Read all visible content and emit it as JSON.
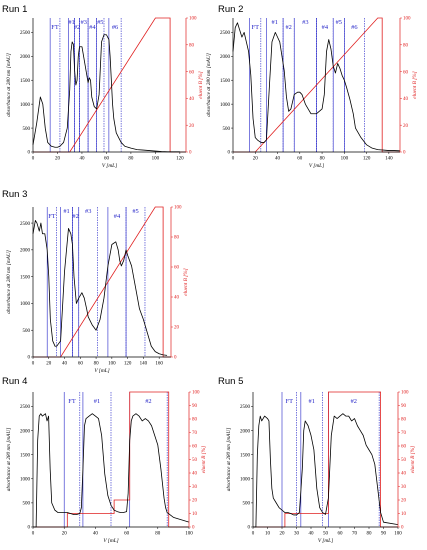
{
  "colors": {
    "absorbance": "#000000",
    "eluent": "#e02020",
    "fraction": "#2424c8",
    "right_axis": "#e02020"
  },
  "chart_data": [
    {
      "title": "Run 1",
      "type": "line",
      "xlabel": "V [mL]",
      "ylabel": "absorbance at 280 nm [mAU]",
      "y2label": "eluent B [%]",
      "xlim": [
        0,
        125
      ],
      "ylim": [
        0,
        2800
      ],
      "y2lim": [
        0,
        100
      ],
      "xticks": [
        0,
        20,
        40,
        60,
        80,
        100,
        120
      ],
      "yticks": [
        0,
        500,
        1000,
        1500,
        2000,
        2500
      ],
      "y2ticks": [
        0,
        20,
        40,
        60,
        80,
        100
      ],
      "absorbance": {
        "x": [
          0,
          3,
          6,
          8,
          10,
          12,
          15,
          18,
          20,
          22,
          25,
          28,
          30,
          31,
          32,
          33,
          34,
          35,
          36,
          37,
          38,
          40,
          42,
          44,
          45,
          46,
          47,
          48,
          50,
          52,
          54,
          56,
          58,
          60,
          62,
          63,
          64,
          65,
          66,
          68,
          70,
          72,
          75,
          80,
          85,
          90,
          95,
          100,
          105,
          110,
          115,
          120
        ],
        "y": [
          150,
          600,
          1150,
          1000,
          500,
          200,
          120,
          100,
          100,
          120,
          200,
          500,
          1300,
          2100,
          2300,
          2250,
          1700,
          1400,
          1500,
          2000,
          2200,
          2200,
          1900,
          1600,
          1450,
          1550,
          1500,
          1150,
          950,
          900,
          1200,
          2300,
          2450,
          2450,
          2350,
          2000,
          1500,
          1000,
          700,
          400,
          300,
          200,
          120,
          80,
          50,
          40,
          30,
          20,
          10,
          5,
          5,
          5
        ]
      },
      "eluent_b": {
        "x": [
          0,
          25,
          30,
          100,
          110,
          112,
          112,
          125
        ],
        "y": [
          0,
          0,
          0,
          100,
          100,
          100,
          0,
          0
        ]
      },
      "fractions": [
        {
          "label": "FT",
          "x": [
            14,
            22
          ]
        },
        {
          "label": "#1",
          "x": [
            29,
            34
          ]
        },
        {
          "label": "#2",
          "x": [
            34,
            38
          ]
        },
        {
          "label": "#3",
          "x": [
            38,
            45
          ]
        },
        {
          "label": "#4",
          "x": [
            45,
            52
          ]
        },
        {
          "label": "#5",
          "x": [
            52,
            58
          ]
        },
        {
          "label": "#6",
          "x": [
            62,
            72
          ]
        }
      ]
    },
    {
      "title": "Run 2",
      "type": "line",
      "xlabel": "V [mL]",
      "ylabel": "absorbance at 280 nm [mAU]",
      "y2label": "eluent B [%]",
      "xlim": [
        0,
        150
      ],
      "ylim": [
        0,
        2800
      ],
      "y2lim": [
        0,
        100
      ],
      "xticks": [
        0,
        20,
        40,
        60,
        80,
        100,
        120,
        140
      ],
      "yticks": [
        0,
        500,
        1000,
        1500,
        2000,
        2500
      ],
      "y2ticks": [
        0,
        20,
        40,
        60,
        80,
        100
      ],
      "absorbance": {
        "x": [
          0,
          2,
          4,
          6,
          8,
          10,
          12,
          14,
          16,
          18,
          20,
          22,
          25,
          28,
          30,
          33,
          35,
          38,
          40,
          42,
          44,
          46,
          48,
          50,
          52,
          55,
          58,
          60,
          62,
          65,
          70,
          75,
          80,
          82,
          84,
          86,
          88,
          90,
          92,
          94,
          96,
          98,
          100,
          102,
          105,
          108,
          110,
          115,
          120,
          125,
          130,
          135,
          140,
          145,
          150
        ],
        "y": [
          2100,
          2600,
          2700,
          2550,
          2400,
          2500,
          2300,
          2100,
          1600,
          700,
          300,
          250,
          200,
          200,
          250,
          1500,
          2300,
          2500,
          2400,
          2300,
          2000,
          1700,
          1150,
          850,
          900,
          1200,
          1250,
          1250,
          1200,
          1000,
          800,
          800,
          900,
          1200,
          2100,
          2350,
          2150,
          1800,
          1650,
          1850,
          1750,
          1600,
          1500,
          1350,
          1100,
          800,
          500,
          300,
          150,
          80,
          50,
          40,
          30,
          30,
          25
        ]
      },
      "eluent_b": {
        "x": [
          0,
          15,
          20,
          130,
          132,
          134,
          134,
          150
        ],
        "y": [
          0,
          0,
          0,
          100,
          100,
          100,
          0,
          0
        ]
      },
      "fractions": [
        {
          "label": "FT",
          "x": [
            15,
            25
          ]
        },
        {
          "label": "#1",
          "x": [
            30,
            45
          ]
        },
        {
          "label": "#2",
          "x": [
            45,
            55
          ]
        },
        {
          "label": "#3",
          "x": [
            55,
            75
          ]
        },
        {
          "label": "#4",
          "x": [
            75,
            90
          ]
        },
        {
          "label": "#5",
          "x": [
            90,
            100
          ]
        },
        {
          "label": "#6",
          "x": [
            100,
            118
          ]
        }
      ]
    },
    {
      "title": "Run 3",
      "type": "line",
      "xlabel": "V [mL]",
      "ylabel": "absorbance at 280 nm [mAU]",
      "y2label": "eluent B [%]",
      "xlim": [
        0,
        175
      ],
      "ylim": [
        0,
        2800
      ],
      "y2lim": [
        0,
        100
      ],
      "xticks": [
        0,
        20,
        40,
        60,
        80,
        100,
        120,
        140,
        160
      ],
      "yticks": [
        0,
        500,
        1000,
        1500,
        2000,
        2500
      ],
      "y2ticks": [
        0,
        20,
        40,
        60,
        80,
        100
      ],
      "absorbance": {
        "x": [
          0,
          3,
          5,
          8,
          10,
          12,
          15,
          18,
          20,
          22,
          25,
          28,
          30,
          35,
          40,
          45,
          48,
          50,
          52,
          55,
          58,
          60,
          62,
          65,
          68,
          70,
          75,
          80,
          85,
          90,
          95,
          100,
          105,
          108,
          110,
          112,
          115,
          118,
          120,
          125,
          130,
          135,
          140,
          145,
          150,
          155,
          160,
          165,
          170
        ],
        "y": [
          2300,
          2550,
          2500,
          2350,
          2500,
          2300,
          2300,
          2000,
          1500,
          700,
          300,
          200,
          200,
          300,
          1600,
          2400,
          2300,
          2100,
          1500,
          1000,
          1100,
          1150,
          1200,
          1100,
          900,
          750,
          600,
          500,
          700,
          1100,
          1700,
          2100,
          2150,
          2000,
          1800,
          1700,
          1800,
          2000,
          1900,
          1700,
          1300,
          900,
          700,
          450,
          200,
          100,
          60,
          40,
          30
        ]
      },
      "eluent_b": {
        "x": [
          0,
          28,
          35,
          155,
          163,
          165,
          165,
          175
        ],
        "y": [
          0,
          0,
          0,
          100,
          100,
          100,
          0,
          0
        ]
      },
      "fractions": [
        {
          "label": "FT",
          "x": [
            18,
            30
          ]
        },
        {
          "label": "#1",
          "x": [
            35,
            50
          ]
        },
        {
          "label": "#2",
          "x": [
            50,
            58
          ]
        },
        {
          "label": "#3",
          "x": [
            58,
            82
          ]
        },
        {
          "label": "#4",
          "x": [
            95,
            118
          ]
        },
        {
          "label": "#5",
          "x": [
            118,
            142
          ]
        }
      ]
    },
    {
      "title": "Run 4",
      "type": "line",
      "xlabel": "V [mL]",
      "ylabel": "absorbance at 280 nm [mAU]",
      "y2label": "eluent B [%]",
      "xlim": [
        0,
        100
      ],
      "ylim": [
        0,
        2800
      ],
      "y2lim": [
        0,
        100
      ],
      "xticks": [
        0,
        20,
        40,
        60,
        80,
        100
      ],
      "yticks": [
        0,
        500,
        1000,
        1500,
        2000,
        2500
      ],
      "y2ticks": [
        0,
        10,
        20,
        30,
        40,
        50,
        60,
        70,
        80,
        90,
        100
      ],
      "absorbance": {
        "x": [
          0,
          2,
          3,
          4,
          5,
          6,
          8,
          9,
          10,
          11,
          12,
          14,
          16,
          18,
          20,
          22,
          24,
          26,
          28,
          30,
          31,
          32,
          33,
          34,
          36,
          38,
          40,
          42,
          44,
          46,
          48,
          50,
          52,
          54,
          56,
          58,
          60,
          61,
          62,
          63,
          64,
          66,
          68,
          70,
          72,
          74,
          76,
          78,
          80,
          82,
          84,
          85,
          86,
          88,
          90,
          95,
          100
        ],
        "y": [
          0,
          0,
          1800,
          2300,
          2350,
          2300,
          2350,
          2200,
          2300,
          1200,
          500,
          350,
          300,
          300,
          300,
          300,
          280,
          260,
          260,
          280,
          400,
          1200,
          2100,
          2250,
          2300,
          2350,
          2300,
          2250,
          1900,
          1100,
          650,
          450,
          350,
          320,
          300,
          300,
          320,
          700,
          1800,
          2200,
          2300,
          2350,
          2300,
          2200,
          2250,
          2200,
          2100,
          1900,
          1700,
          1200,
          600,
          400,
          300,
          250,
          200,
          150,
          100
        ]
      },
      "eluent_b": {
        "x": [
          0,
          20,
          22,
          22,
          50,
          52,
          52,
          62,
          62,
          85,
          87,
          87,
          100
        ],
        "y": [
          0,
          0,
          0,
          10,
          10,
          10,
          20,
          20,
          100,
          100,
          100,
          0,
          0
        ]
      },
      "fractions": [
        {
          "label": "FT",
          "x": [
            20,
            30
          ]
        },
        {
          "label": "#1",
          "x": [
            32,
            50
          ]
        },
        {
          "label": "#2",
          "x": [
            62,
            86
          ]
        }
      ]
    },
    {
      "title": "Run 5",
      "type": "line",
      "xlabel": "V [mL]",
      "ylabel": "absorbance at 280 nm [mAU]",
      "y2label": "eluent B [%]",
      "xlim": [
        0,
        100
      ],
      "ylim": [
        0,
        2800
      ],
      "y2lim": [
        0,
        100
      ],
      "xticks": [
        0,
        10,
        20,
        30,
        40,
        50,
        60,
        70,
        80,
        90,
        100
      ],
      "yticks": [
        0,
        500,
        1000,
        1500,
        2000,
        2500
      ],
      "y2ticks": [
        0,
        10,
        20,
        30,
        40,
        50,
        60,
        70,
        80,
        90,
        100
      ],
      "absorbance": {
        "x": [
          0,
          2,
          3,
          4,
          5,
          6,
          8,
          10,
          11,
          12,
          13,
          14,
          16,
          18,
          20,
          22,
          24,
          26,
          28,
          30,
          32,
          34,
          35,
          36,
          38,
          40,
          42,
          44,
          46,
          48,
          50,
          52,
          54,
          56,
          58,
          60,
          62,
          64,
          66,
          68,
          70,
          72,
          74,
          76,
          78,
          80,
          82,
          84,
          86,
          88,
          90,
          100
        ],
        "y": [
          0,
          0,
          1500,
          2100,
          2300,
          2200,
          2300,
          2250,
          2200,
          1400,
          800,
          600,
          500,
          400,
          350,
          300,
          300,
          280,
          250,
          250,
          300,
          1200,
          2000,
          2200,
          2100,
          1900,
          1600,
          800,
          400,
          300,
          260,
          600,
          1900,
          2300,
          2250,
          2300,
          2350,
          2300,
          2300,
          2200,
          2250,
          2100,
          2000,
          1900,
          1700,
          1600,
          1500,
          1300,
          800,
          300,
          100,
          50
        ]
      },
      "eluent_b": {
        "x": [
          0,
          20,
          22,
          22,
          50,
          52,
          52,
          86,
          88,
          88,
          100
        ],
        "y": [
          0,
          0,
          0,
          10,
          10,
          10,
          100,
          100,
          100,
          0,
          0
        ]
      },
      "fractions": [
        {
          "label": "FT",
          "x": [
            20,
            30
          ]
        },
        {
          "label": "#1",
          "x": [
            33,
            48
          ]
        },
        {
          "label": "#2",
          "x": [
            52,
            87
          ]
        }
      ]
    }
  ]
}
